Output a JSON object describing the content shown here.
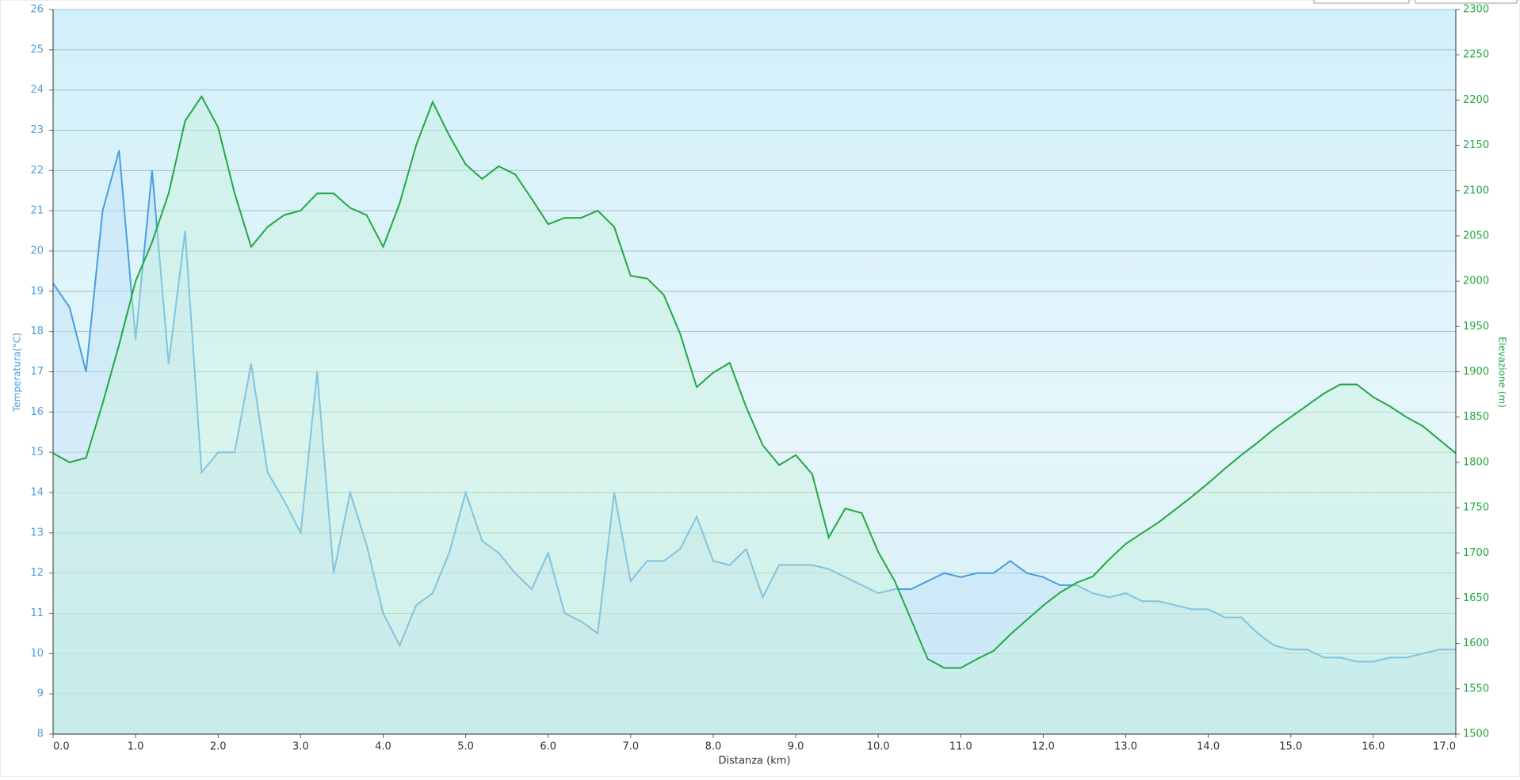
{
  "chart_data": {
    "type": "line",
    "xlabel": "Distanza  (km)",
    "ylabel": "Temperatura(°C)",
    "y2label": "Elevazione (m)",
    "xlim": [
      0,
      17
    ],
    "ylim": [
      8,
      26
    ],
    "y2lim": [
      1500,
      2300
    ],
    "xticks": [
      {
        "value": 0,
        "label": "0.0"
      },
      {
        "value": 1,
        "label": "1.0"
      },
      {
        "value": 2,
        "label": "2.0"
      },
      {
        "value": 3,
        "label": "3.0"
      },
      {
        "value": 4,
        "label": "4.0"
      },
      {
        "value": 5,
        "label": "5.0"
      },
      {
        "value": 6,
        "label": "6.0"
      },
      {
        "value": 7,
        "label": "7.0"
      },
      {
        "value": 8,
        "label": "8.0"
      },
      {
        "value": 9,
        "label": "9.0"
      },
      {
        "value": 10,
        "label": "10.0"
      },
      {
        "value": 11,
        "label": "11.0"
      },
      {
        "value": 12,
        "label": "12.0"
      },
      {
        "value": 13,
        "label": "13.0"
      },
      {
        "value": 14,
        "label": "14.0"
      },
      {
        "value": 15,
        "label": "15.0"
      },
      {
        "value": 16,
        "label": "16.0"
      },
      {
        "value": 17,
        "label": "17.0"
      }
    ],
    "yticks": [
      8,
      9,
      10,
      11,
      12,
      13,
      14,
      15,
      16,
      17,
      18,
      19,
      20,
      21,
      22,
      23,
      24,
      25,
      26
    ],
    "y2ticks": [
      1500,
      1550,
      1600,
      1650,
      1700,
      1750,
      1800,
      1850,
      1900,
      1950,
      2000,
      2050,
      2100,
      2150,
      2200,
      2250,
      2300
    ],
    "grid": true,
    "x": [
      0,
      0.2,
      0.4,
      0.6,
      0.8,
      1,
      1.2,
      1.4,
      1.6,
      1.8,
      2,
      2.2,
      2.4,
      2.6,
      2.8,
      3,
      3.2,
      3.4,
      3.6,
      3.8,
      4,
      4.2,
      4.4,
      4.6,
      4.8,
      5,
      5.2,
      5.4,
      5.6,
      5.8,
      6,
      6.2,
      6.4,
      6.6,
      6.8,
      7,
      7.2,
      7.4,
      7.6,
      7.8,
      8,
      8.2,
      8.4,
      8.6,
      8.8,
      9,
      9.2,
      9.4,
      9.6,
      9.8,
      10,
      10.2,
      10.4,
      10.6,
      10.8,
      11,
      11.2,
      11.4,
      11.6,
      11.8,
      12,
      12.2,
      12.4,
      12.6,
      12.8,
      13,
      13.2,
      13.4,
      13.6,
      13.8,
      14,
      14.2,
      14.4,
      14.6,
      14.8,
      15,
      15.2,
      15.4,
      15.6,
      15.8,
      16,
      16.2,
      16.4,
      16.6,
      16.8,
      17
    ],
    "series": [
      {
        "name": "Temperatura",
        "color": "#4a9ee0",
        "fill": "#bfe0f7",
        "values": [
          19.2,
          18.6,
          17.0,
          21.0,
          22.5,
          17.8,
          22.0,
          17.2,
          20.5,
          14.5,
          15.0,
          15.0,
          17.2,
          14.5,
          13.8,
          13.0,
          17.0,
          12.0,
          14.0,
          12.7,
          11.0,
          10.2,
          11.2,
          11.5,
          12.5,
          14.0,
          12.8,
          12.5,
          12.0,
          11.6,
          12.5,
          11.0,
          10.8,
          10.5,
          14.0,
          11.8,
          12.3,
          12.3,
          12.6,
          13.4,
          12.3,
          12.2,
          12.6,
          11.4,
          12.2,
          12.2,
          12.2,
          12.1,
          11.9,
          11.7,
          11.5,
          11.6,
          11.6,
          11.8,
          12.0,
          11.9,
          12.0,
          12.0,
          12.3,
          12.0,
          11.9,
          11.7,
          11.7,
          11.5,
          11.4,
          11.5,
          11.3,
          11.3,
          11.2,
          11.1,
          11.1,
          10.9,
          10.9,
          10.5,
          10.2,
          10.1,
          10.1,
          9.9,
          9.9,
          9.8,
          9.8,
          9.9,
          9.9,
          10.0,
          10.1,
          10.1
        ]
      },
      {
        "name": "Elevazione",
        "color": "#22a843",
        "fill": "#c8f2dc",
        "axis": "y2",
        "values": [
          1810,
          1800,
          1805,
          1865,
          1930,
          2000,
          2043,
          2097,
          2177,
          2204,
          2170,
          2097,
          2038,
          2060,
          2073,
          2078,
          2097,
          2097,
          2081,
          2073,
          2038,
          2086,
          2150,
          2198,
          2161,
          2129,
          2113,
          2127,
          2118,
          2091,
          2063,
          2070,
          2070,
          2078,
          2060,
          2006,
          2003,
          1985,
          1942,
          1883,
          1899,
          1910,
          1861,
          1819,
          1797,
          1808,
          1787,
          1717,
          1749,
          1744,
          1701,
          1669,
          1626,
          1583,
          1573,
          1573,
          1583,
          1592,
          1610,
          1626,
          1642,
          1656,
          1667,
          1674,
          1693,
          1710,
          1722,
          1734,
          1748,
          1762,
          1777,
          1793,
          1808,
          1822,
          1837,
          1850,
          1863,
          1876,
          1886,
          1886,
          1872,
          1862,
          1850,
          1840,
          1825,
          1810
        ]
      }
    ]
  }
}
